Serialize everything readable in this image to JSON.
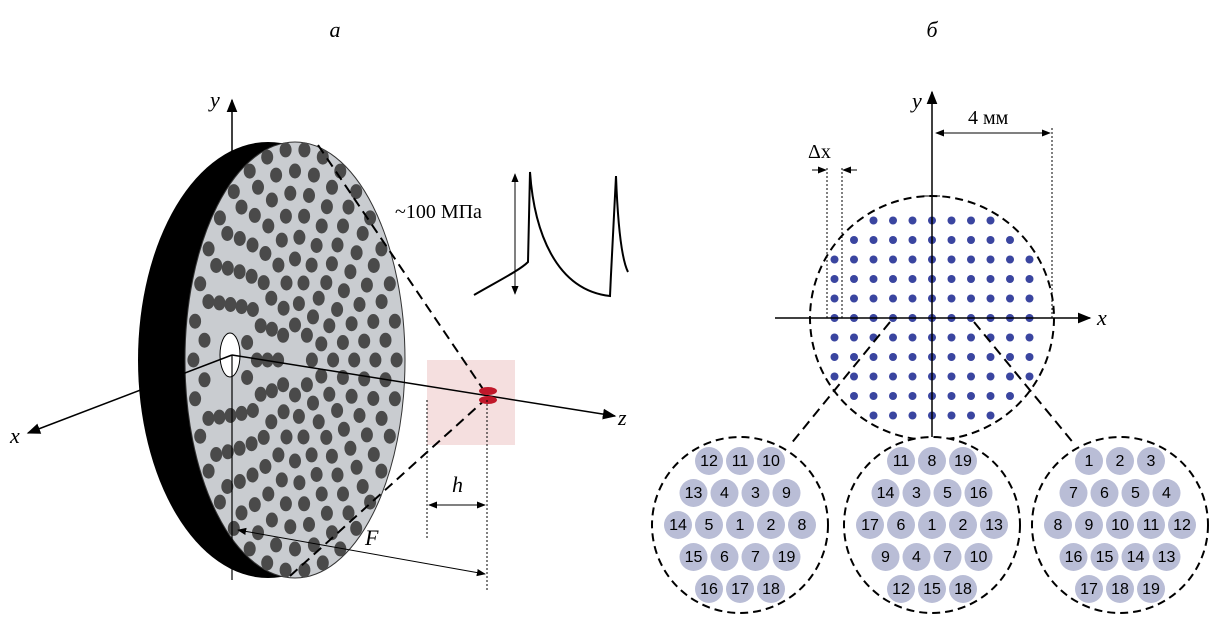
{
  "panels": {
    "left": "а",
    "right": "б"
  },
  "left": {
    "y_axis": "y",
    "x_axis": "x",
    "z_axis": "z",
    "pressure": "~100 МПа",
    "h": "h",
    "F": "F"
  },
  "right": {
    "y_axis": "y",
    "x_axis": "x",
    "width": "4 мм",
    "dx": "Δx",
    "insets": [
      [
        [
          12,
          11,
          10
        ],
        [
          13,
          4,
          3,
          9
        ],
        [
          14,
          5,
          1,
          2,
          8
        ],
        [
          15,
          6,
          7,
          19
        ],
        [
          16,
          17,
          18
        ]
      ],
      [
        [
          11,
          8,
          19
        ],
        [
          14,
          3,
          5,
          16
        ],
        [
          17,
          6,
          1,
          2,
          13
        ],
        [
          9,
          4,
          7,
          10
        ],
        [
          12,
          15,
          18
        ]
      ],
      [
        [
          1,
          2,
          3
        ],
        [
          7,
          6,
          5,
          4
        ],
        [
          8,
          9,
          10,
          11,
          12
        ],
        [
          16,
          15,
          14,
          13
        ],
        [
          17,
          18,
          19
        ]
      ]
    ]
  }
}
